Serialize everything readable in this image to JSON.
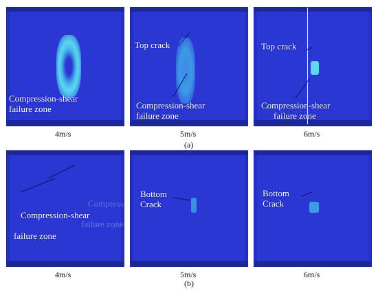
{
  "row_a": {
    "caption": "(a)",
    "panels": [
      {
        "speed": "4m/s",
        "zone_label_1": "Compression-shear",
        "zone_label_2": "failure zone"
      },
      {
        "speed": "5m/s",
        "crack_label": "Top crack",
        "zone_label_1": "Compression-shear",
        "zone_label_2": "failure zone"
      },
      {
        "speed": "6m/s",
        "crack_label": "Top crack",
        "zone_label_1": "Compression-shear",
        "zone_label_2": "failure zone"
      }
    ]
  },
  "row_b": {
    "caption": "(b)",
    "panels": [
      {
        "speed": "4m/s",
        "zone_label_a": "Compression-shear",
        "zone_label_b": "Compression-shear",
        "zone_label_c": "failure zone",
        "zone_label_d": "failure zone"
      },
      {
        "speed": "5m/s",
        "crack_label_1": "Bottom",
        "crack_label_2": "Crack"
      },
      {
        "speed": "6m/s",
        "crack_label_1": "Bottom",
        "crack_label_2": "Crack"
      }
    ]
  },
  "colors": {
    "background": "#2a37d3",
    "damage_light": "#5fd6f0",
    "damage_mid": "#3b8fe6",
    "label_text": "#ffffff"
  }
}
